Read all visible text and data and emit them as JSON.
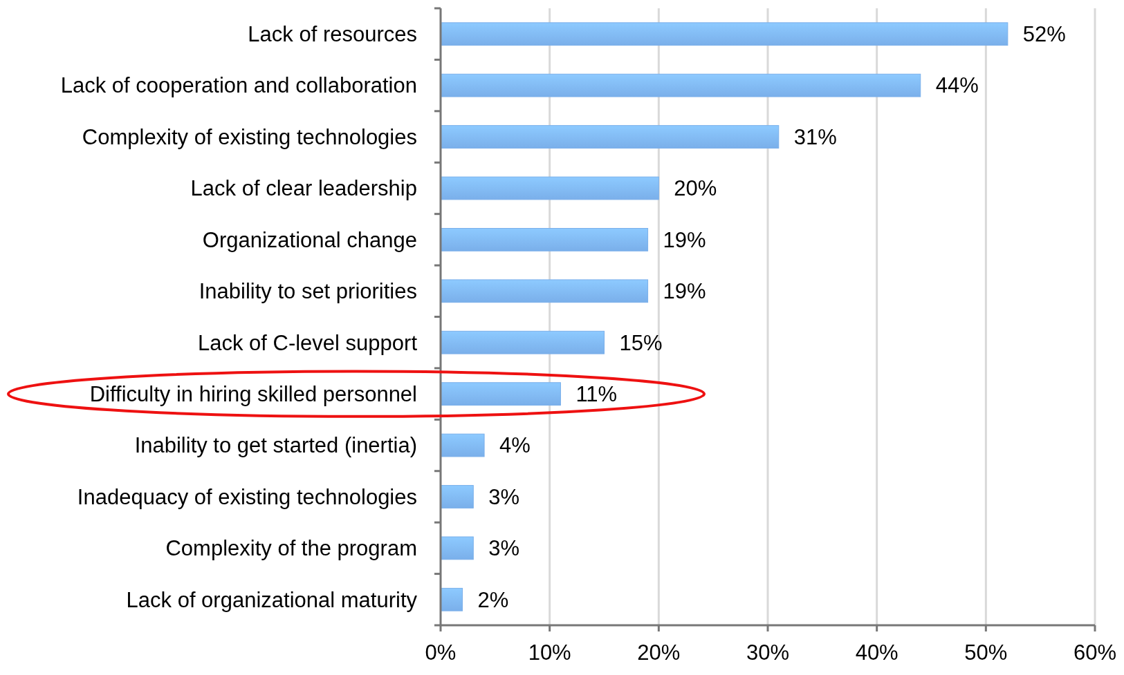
{
  "chart_data": {
    "type": "bar",
    "orientation": "horizontal",
    "categories": [
      "Lack of resources",
      "Lack of cooperation and collaboration",
      "Complexity of existing technologies",
      "Lack of clear leadership",
      "Organizational change",
      "Inability to set priorities",
      "Lack of C-level support",
      "Difficulty in hiring skilled personnel",
      "Inability to get started (inertia)",
      "Inadequacy of existing technologies",
      "Complexity of the program",
      "Lack of organizational maturity"
    ],
    "values": [
      52,
      44,
      31,
      20,
      19,
      19,
      15,
      11,
      4,
      3,
      3,
      2
    ],
    "value_labels": [
      "52%",
      "44%",
      "31%",
      "20%",
      "19%",
      "19%",
      "15%",
      "11%",
      "4%",
      "3%",
      "3%",
      "2%"
    ],
    "color": "#7aafea",
    "xlim": [
      0,
      60
    ],
    "xticks": [
      {
        "value": 0,
        "label": "0%"
      },
      {
        "value": 10,
        "label": "10%"
      },
      {
        "value": 20,
        "label": "20%"
      },
      {
        "value": 30,
        "label": "30%"
      },
      {
        "value": 40,
        "label": "40%"
      },
      {
        "value": 50,
        "label": "50%"
      },
      {
        "value": 60,
        "label": "60%"
      }
    ],
    "grid": "x"
  }
}
